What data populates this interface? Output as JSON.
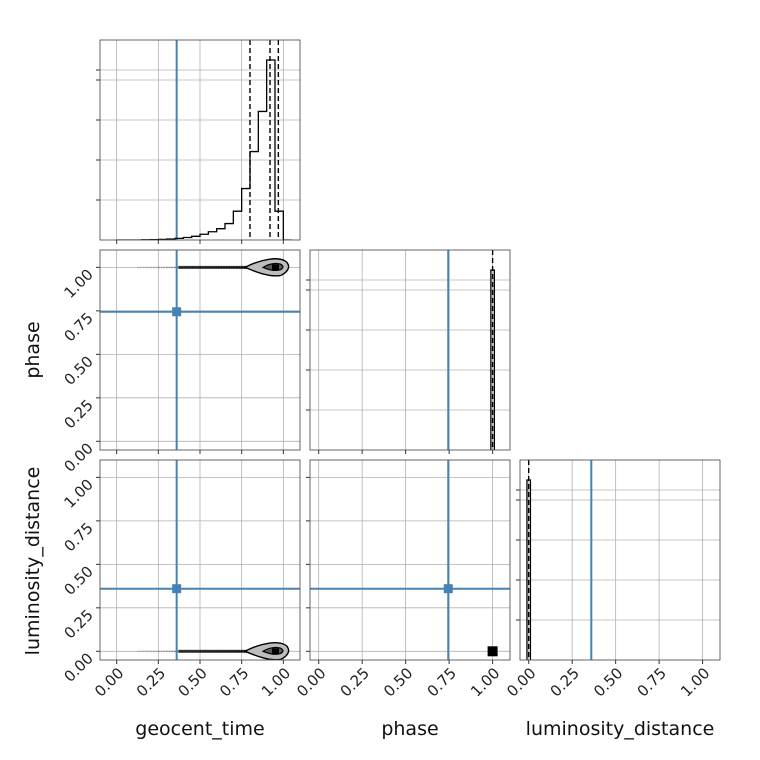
{
  "chart_data": {
    "type": "corner",
    "parameters": [
      "geocent_time",
      "phase",
      "luminosity_distance"
    ],
    "axis_labels": {
      "geocent_time": "geocent_time",
      "phase": "phase",
      "luminosity_distance": "luminosity_distance"
    },
    "tick_values": [
      0.0,
      0.25,
      0.5,
      0.75,
      1.0
    ],
    "tick_labels": [
      "0.00",
      "0.25",
      "0.50",
      "0.75",
      "1.00"
    ],
    "ranges": {
      "geocent_time": [
        -0.1,
        1.1
      ],
      "phase": [
        -0.05,
        1.1
      ],
      "luminosity_distance": [
        -0.05,
        1.1
      ]
    },
    "grid": true,
    "truth_color": "#4682b4",
    "truths": {
      "geocent_time": 0.36,
      "phase": 0.745,
      "luminosity_distance": 0.36
    },
    "histograms": {
      "geocent_time": {
        "bin_edges": [
          0.0,
          0.05,
          0.1,
          0.15,
          0.2,
          0.25,
          0.3,
          0.35,
          0.4,
          0.45,
          0.5,
          0.55,
          0.6,
          0.65,
          0.7,
          0.75,
          0.8,
          0.85,
          0.9,
          0.95,
          1.0,
          1.05
        ],
        "counts": [
          0,
          0,
          0,
          0.001,
          0.002,
          0.003,
          0.005,
          0.008,
          0.012,
          0.018,
          0.028,
          0.04,
          0.055,
          0.08,
          0.14,
          0.25,
          0.43,
          0.625,
          0.875,
          0.14,
          0
        ],
        "quantiles": [
          0.8,
          0.92,
          0.97
        ]
      },
      "phase": {
        "bin_edges": [
          0.99,
          1.01
        ],
        "counts": [
          1.0
        ],
        "quantiles": [
          1.0
        ]
      },
      "luminosity_distance": {
        "bin_edges": [
          -0.01,
          0.01
        ],
        "counts": [
          1.0
        ],
        "quantiles": [
          0.0
        ]
      }
    },
    "density_2d": [
      {
        "x": "geocent_time",
        "y": "phase",
        "blob_center": [
          0.95,
          1.0
        ],
        "tail_start": 0.13
      },
      {
        "x": "geocent_time",
        "y": "luminosity_distance",
        "blob_center": [
          0.95,
          0.0
        ],
        "tail_start": 0.13
      },
      {
        "x": "phase",
        "y": "luminosity_distance",
        "point": [
          1.0,
          0.0
        ]
      }
    ]
  }
}
